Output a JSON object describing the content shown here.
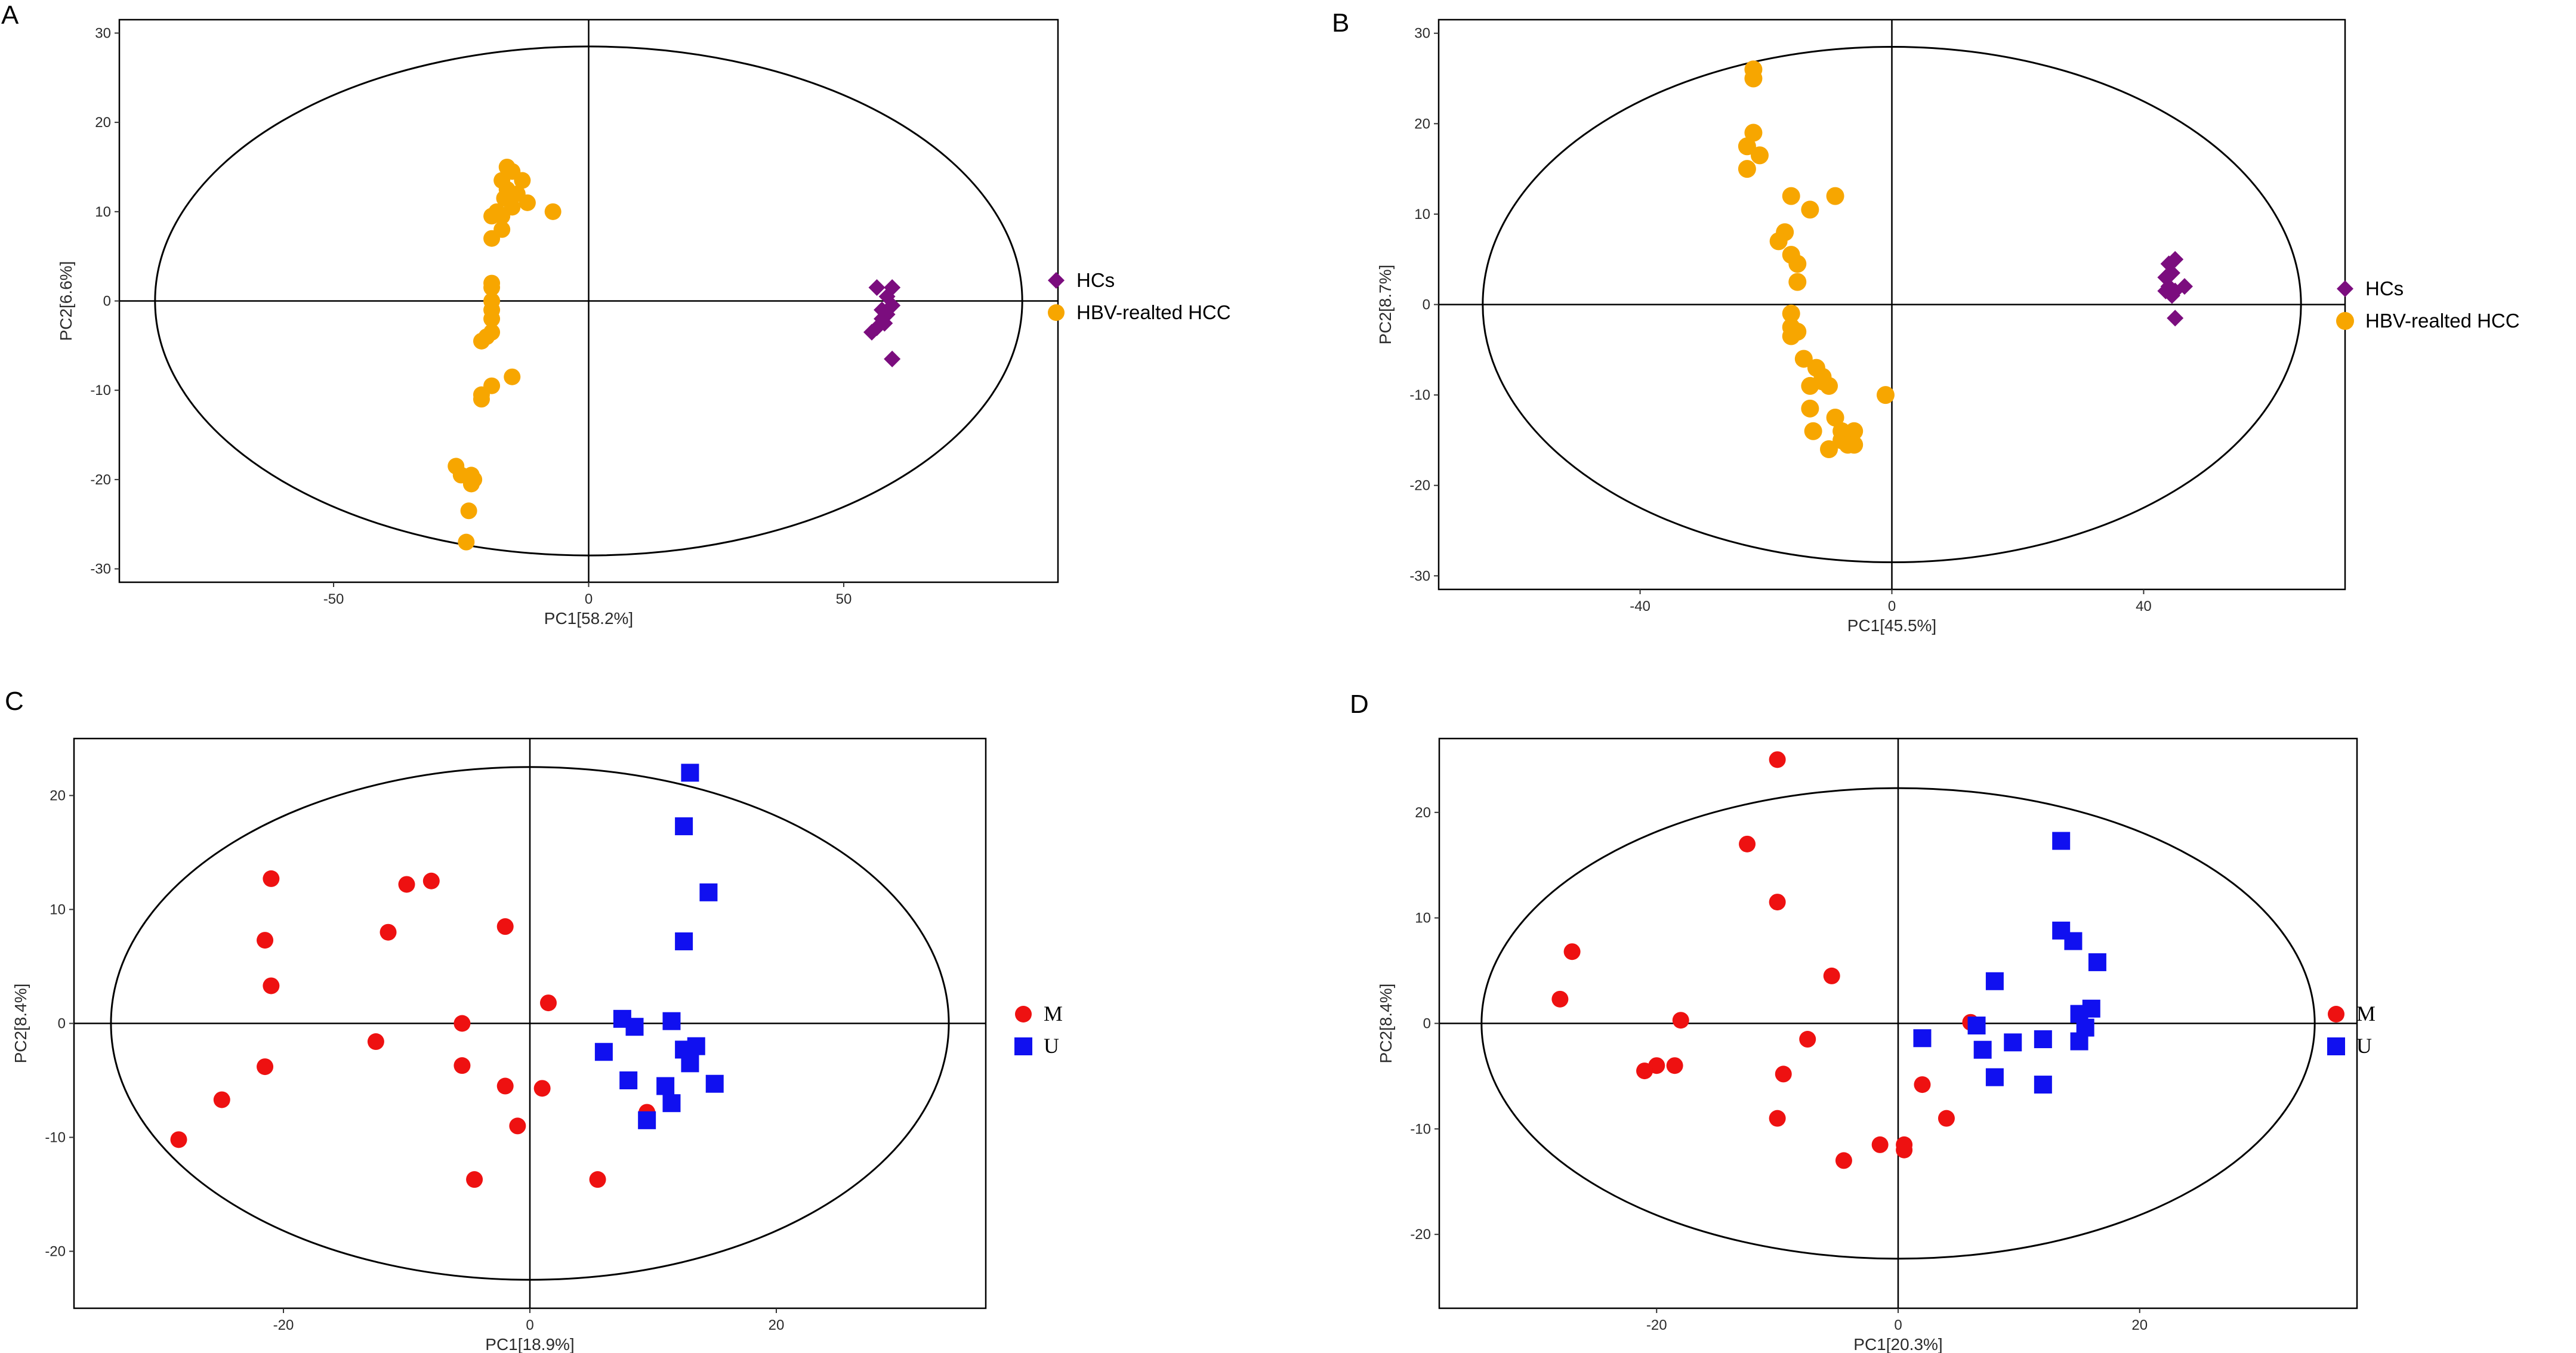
{
  "chart_data": [
    {
      "panel": "A",
      "type": "scatter",
      "xlabel": "PC1[58.2%]",
      "ylabel": "PC2[6.6%]",
      "xlim": [
        -92,
        92
      ],
      "ylim": [
        -31.5,
        31.5
      ],
      "xticks": [
        -50,
        0,
        50
      ],
      "yticks": [
        -30,
        -20,
        -10,
        0,
        10,
        20,
        30
      ],
      "ellipse": {
        "center": [
          0,
          0
        ],
        "rx": 85,
        "ry": 28.5
      },
      "legend_position": "right",
      "series": [
        {
          "name": "HCs",
          "marker": "diamond",
          "color": "#7B0D7E",
          "points": [
            [
              56.5,
              1.5
            ],
            [
              59.5,
              1.5
            ],
            [
              58.5,
              0.5
            ],
            [
              59.5,
              -0.5
            ],
            [
              57.5,
              -1
            ],
            [
              58.5,
              -1.5
            ],
            [
              57.5,
              -2
            ],
            [
              56.5,
              -3
            ],
            [
              58,
              -2.5
            ],
            [
              55.5,
              -3.5
            ],
            [
              59.5,
              -6.5
            ]
          ]
        },
        {
          "name": "HBV-realted HCC",
          "marker": "circle",
          "color": "#F7A600",
          "points": [
            [
              -16,
              15
            ],
            [
              -15,
              14.5
            ],
            [
              -17,
              13.5
            ],
            [
              -13,
              13.5
            ],
            [
              -16,
              12.5
            ],
            [
              -14,
              12
            ],
            [
              -16.5,
              11.5
            ],
            [
              -12,
              11
            ],
            [
              -15,
              10.5
            ],
            [
              -18,
              10
            ],
            [
              -17,
              9.5
            ],
            [
              -19,
              9.5
            ],
            [
              -7,
              10
            ],
            [
              -17,
              8
            ],
            [
              -19,
              7
            ],
            [
              -19,
              2
            ],
            [
              -19,
              1.5
            ],
            [
              -19,
              0
            ],
            [
              -19,
              -1
            ],
            [
              -19,
              -2
            ],
            [
              -19,
              -3.5
            ],
            [
              -20,
              -4
            ],
            [
              -21,
              -4.5
            ],
            [
              -15,
              -8.5
            ],
            [
              -19,
              -9.5
            ],
            [
              -21,
              -10.5
            ],
            [
              -21,
              -11
            ],
            [
              -26,
              -18.5
            ],
            [
              -25,
              -19.5
            ],
            [
              -23,
              -19.5
            ],
            [
              -22.5,
              -20
            ],
            [
              -23,
              -20.5
            ],
            [
              -23.5,
              -23.5
            ],
            [
              -24,
              -27
            ]
          ]
        }
      ]
    },
    {
      "panel": "B",
      "type": "scatter",
      "xlabel": "PC1[45.5%]",
      "ylabel": "PC2[8.7%]",
      "xlim": [
        -72,
        72
      ],
      "ylim": [
        -31.5,
        31.5
      ],
      "xticks": [
        -40,
        0,
        40
      ],
      "yticks": [
        -30,
        -20,
        -10,
        0,
        10,
        20,
        30
      ],
      "ellipse": {
        "center": [
          0,
          0
        ],
        "rx": 65,
        "ry": 28.5
      },
      "legend_position": "right",
      "series": [
        {
          "name": "HCs",
          "marker": "diamond",
          "color": "#7B0D7E",
          "points": [
            [
              45,
              5
            ],
            [
              44,
              4.5
            ],
            [
              44.5,
              3.5
            ],
            [
              43.5,
              3
            ],
            [
              46.5,
              2
            ],
            [
              44,
              2
            ],
            [
              45,
              1.5
            ],
            [
              43.5,
              1.5
            ],
            [
              44.5,
              1
            ],
            [
              45,
              -1.5
            ]
          ]
        },
        {
          "name": "HBV-realted HCC",
          "marker": "circle",
          "color": "#F7A600",
          "points": [
            [
              -22,
              26
            ],
            [
              -22,
              25
            ],
            [
              -22,
              19
            ],
            [
              -23,
              17.5
            ],
            [
              -21,
              16.5
            ],
            [
              -23,
              15
            ],
            [
              -16,
              12
            ],
            [
              -9,
              12
            ],
            [
              -13,
              10.5
            ],
            [
              -17,
              8
            ],
            [
              -18,
              7
            ],
            [
              -16,
              5.5
            ],
            [
              -15,
              4.5
            ],
            [
              -15,
              2.5
            ],
            [
              -16,
              -1
            ],
            [
              -16,
              -2.5
            ],
            [
              -15,
              -3
            ],
            [
              -16,
              -3.5
            ],
            [
              -14,
              -6
            ],
            [
              -12,
              -7
            ],
            [
              -11,
              -8
            ],
            [
              -11,
              -8.5
            ],
            [
              -13,
              -9
            ],
            [
              -10,
              -9
            ],
            [
              -13,
              -11.5
            ],
            [
              -9,
              -12.5
            ],
            [
              -12.5,
              -14
            ],
            [
              -8,
              -14
            ],
            [
              -6,
              -14
            ],
            [
              -8,
              -15
            ],
            [
              -7,
              -15.5
            ],
            [
              -6,
              -15.5
            ],
            [
              -10,
              -16
            ],
            [
              -1,
              -10
            ]
          ]
        }
      ]
    },
    {
      "panel": "C",
      "type": "scatter",
      "xlabel": "PC1[18.9%]",
      "ylabel": "PC2[8.4%]",
      "xlim": [
        -37,
        37
      ],
      "ylim": [
        -25,
        25
      ],
      "xticks": [
        -20,
        0,
        20
      ],
      "yticks": [
        -20,
        -10,
        0,
        10,
        20
      ],
      "ellipse": {
        "center": [
          0,
          0
        ],
        "rx": 34,
        "ry": 22.5
      },
      "legend_position": "right",
      "series": [
        {
          "name": "M",
          "marker": "circle",
          "color": "#EE1111",
          "points": [
            [
              -21,
              12.7
            ],
            [
              -21.5,
              7.3
            ],
            [
              -21,
              3.3
            ],
            [
              -21.5,
              -3.8
            ],
            [
              -25,
              -6.7
            ],
            [
              -28.5,
              -10.2
            ],
            [
              -12.5,
              -1.6
            ],
            [
              -11.5,
              8
            ],
            [
              -10,
              12.2
            ],
            [
              -8,
              12.5
            ],
            [
              -2,
              8.5
            ],
            [
              -5.5,
              0
            ],
            [
              -5.5,
              -3.7
            ],
            [
              -2,
              -5.5
            ],
            [
              -1,
              -9
            ],
            [
              -4.5,
              -13.7
            ],
            [
              1.5,
              1.8
            ],
            [
              1,
              -5.7
            ],
            [
              9.5,
              -7.8
            ],
            [
              5.5,
              -13.7
            ]
          ]
        },
        {
          "name": "U",
          "marker": "square",
          "color": "#1010F0",
          "points": [
            [
              13,
              22
            ],
            [
              12.5,
              17.3
            ],
            [
              14.5,
              11.5
            ],
            [
              12.5,
              7.2
            ],
            [
              7.5,
              0.4
            ],
            [
              8.5,
              -0.3
            ],
            [
              11.5,
              0.2
            ],
            [
              6,
              -2.5
            ],
            [
              12.5,
              -2.3
            ],
            [
              13.5,
              -2
            ],
            [
              13,
              -3.5
            ],
            [
              8,
              -5
            ],
            [
              11,
              -5.5
            ],
            [
              15,
              -5.3
            ],
            [
              9.5,
              -8.5
            ],
            [
              11.5,
              -7
            ]
          ]
        }
      ]
    },
    {
      "panel": "D",
      "type": "scatter",
      "xlabel": "PC1[20.3%]",
      "ylabel": "PC2[8.4%]",
      "xlim": [
        -38,
        38
      ],
      "ylim": [
        -27,
        27
      ],
      "xticks": [
        -20,
        0,
        20
      ],
      "yticks": [
        -20,
        -10,
        0,
        10,
        20
      ],
      "ellipse": {
        "center": [
          0,
          0
        ],
        "rx": 34.5,
        "ry": 22.3
      },
      "legend_position": "right",
      "series": [
        {
          "name": "M",
          "marker": "circle",
          "color": "#EE1111",
          "points": [
            [
              -10,
              25
            ],
            [
              -12.5,
              17
            ],
            [
              -10,
              11.5
            ],
            [
              -27,
              6.8
            ],
            [
              -28,
              2.3
            ],
            [
              -18,
              0.3
            ],
            [
              -5.5,
              4.5
            ],
            [
              -20,
              -4
            ],
            [
              -21,
              -4.5
            ],
            [
              -18.5,
              -4
            ],
            [
              -7.5,
              -1.5
            ],
            [
              -9.5,
              -4.8
            ],
            [
              -10,
              -9
            ],
            [
              -4.5,
              -13
            ],
            [
              -1.5,
              -11.5
            ],
            [
              0.5,
              -12
            ],
            [
              0.5,
              -11.5
            ],
            [
              4,
              -9
            ],
            [
              2,
              -5.8
            ],
            [
              6,
              0.1
            ]
          ]
        },
        {
          "name": "U",
          "marker": "square",
          "color": "#1010F0",
          "points": [
            [
              13.5,
              17.3
            ],
            [
              13.5,
              8.8
            ],
            [
              14.5,
              7.8
            ],
            [
              16.5,
              5.8
            ],
            [
              8,
              4
            ],
            [
              15,
              0.9
            ],
            [
              16,
              1.4
            ],
            [
              15.5,
              -0.4
            ],
            [
              15,
              -1.7
            ],
            [
              6.5,
              -0.2
            ],
            [
              2,
              -1.4
            ],
            [
              7,
              -2.5
            ],
            [
              9.5,
              -1.8
            ],
            [
              12,
              -1.5
            ],
            [
              8,
              -5.1
            ],
            [
              12,
              -5.8
            ]
          ]
        }
      ]
    }
  ]
}
